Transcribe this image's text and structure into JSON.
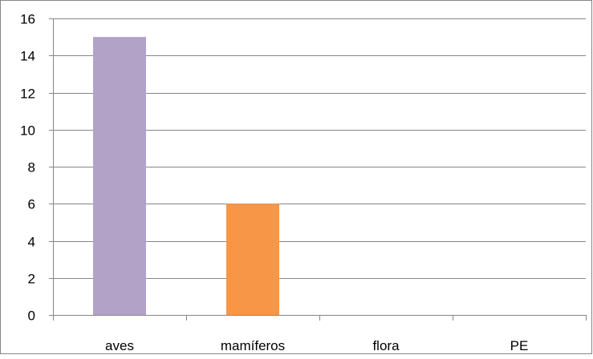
{
  "chart_data": {
    "type": "bar",
    "categories": [
      "aves",
      "mamíferos",
      "flora",
      "PE"
    ],
    "values": [
      15,
      6,
      0,
      0
    ],
    "bar_colors": [
      "#b3a2c7",
      "#f79646",
      "#4bacc6",
      "#9bbb59"
    ],
    "ylim": [
      0,
      16
    ],
    "yticks": [
      0,
      2,
      4,
      6,
      8,
      10,
      12,
      14,
      16
    ],
    "grid": true,
    "legend": "none"
  },
  "colors": {
    "gridline": "#868686",
    "axis": "#868686",
    "border": "#868686",
    "background": "#ffffff"
  }
}
